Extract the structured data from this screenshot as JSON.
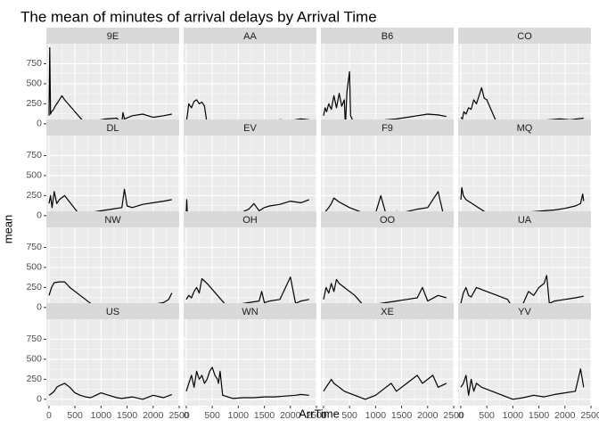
{
  "chart_data": {
    "type": "line",
    "layout": "facet_wrap",
    "ncol": 4,
    "title": "The mean of minutes of arrival delays by Arrival Time",
    "xlabel": "ArrTime",
    "ylabel": "mean",
    "xlim": [
      -50,
      2500
    ],
    "ylim": [
      -80,
      1000
    ],
    "x_ticks": [
      0,
      500,
      1000,
      1500,
      2000,
      2500
    ],
    "x_tick_labels": [
      "0",
      "500",
      "1000",
      "1500",
      "2000",
      "2500"
    ],
    "y_ticks": [
      0,
      250,
      500,
      750
    ],
    "y_tick_labels": [
      "0",
      "250",
      "500",
      "750"
    ],
    "grid": true,
    "background": "#ebebeb",
    "strip_color": "#d9d9d9",
    "line_color": "#000000",
    "facets": [
      {
        "name": "9E",
        "x": [
          1,
          15,
          30,
          50,
          80,
          120,
          160,
          200,
          250,
          300,
          700,
          900,
          1100,
          1300,
          1400,
          1420,
          1450,
          1600,
          1800,
          2000,
          2200,
          2359
        ],
        "y": [
          100,
          950,
          120,
          150,
          170,
          220,
          260,
          300,
          350,
          300,
          0,
          40,
          60,
          70,
          10,
          140,
          60,
          100,
          120,
          80,
          100,
          120
        ]
      },
      {
        "name": "AA",
        "x": [
          1,
          20,
          50,
          100,
          150,
          200,
          250,
          300,
          350,
          400,
          500,
          600,
          800,
          1000,
          1200,
          1400,
          1600,
          1800,
          2000,
          2200,
          2359
        ],
        "y": [
          20,
          100,
          250,
          200,
          280,
          300,
          250,
          270,
          220,
          0,
          -10,
          10,
          0,
          5,
          10,
          20,
          30,
          50,
          40,
          60,
          50
        ]
      },
      {
        "name": "B6",
        "x": [
          1,
          30,
          60,
          100,
          150,
          200,
          250,
          300,
          350,
          400,
          420,
          450,
          500,
          520,
          600,
          800,
          1000,
          1200,
          1400,
          1600,
          1800,
          2000,
          2200,
          2359
        ],
        "y": [
          100,
          200,
          150,
          250,
          180,
          350,
          200,
          380,
          220,
          300,
          -40,
          400,
          650,
          100,
          -10,
          0,
          30,
          50,
          60,
          80,
          100,
          120,
          110,
          90
        ]
      },
      {
        "name": "CO",
        "x": [
          1,
          30,
          60,
          100,
          150,
          200,
          250,
          300,
          350,
          400,
          450,
          500,
          700,
          900,
          1100,
          1300,
          1500,
          1700,
          1900,
          2100,
          2359
        ],
        "y": [
          80,
          60,
          150,
          120,
          200,
          180,
          300,
          250,
          350,
          450,
          320,
          300,
          0,
          10,
          20,
          30,
          40,
          50,
          60,
          50,
          70
        ]
      },
      {
        "name": "DL",
        "x": [
          1,
          30,
          60,
          100,
          150,
          200,
          300,
          600,
          800,
          1000,
          1200,
          1400,
          1450,
          1500,
          1600,
          1800,
          2000,
          2200,
          2359
        ],
        "y": [
          150,
          250,
          100,
          300,
          150,
          200,
          250,
          0,
          40,
          60,
          80,
          100,
          330,
          120,
          100,
          140,
          160,
          180,
          200
        ]
      },
      {
        "name": "EV",
        "x": [
          1,
          10,
          20,
          900,
          1000,
          1200,
          1300,
          1400,
          1500,
          1600,
          1800,
          2000,
          2200,
          2359
        ],
        "y": [
          50,
          200,
          40,
          -50,
          20,
          80,
          150,
          60,
          100,
          120,
          140,
          180,
          160,
          200
        ]
      },
      {
        "name": "F9",
        "x": [
          1,
          100,
          150,
          200,
          300,
          500,
          700,
          800,
          900,
          1000,
          1100,
          1200,
          1300,
          1400,
          1500,
          1600,
          1800,
          2000,
          2200,
          2300,
          2359
        ],
        "y": [
          20,
          100,
          150,
          220,
          170,
          100,
          50,
          0,
          30,
          30,
          250,
          20,
          30,
          50,
          40,
          50,
          80,
          100,
          300,
          20,
          40
        ]
      },
      {
        "name": "MQ",
        "x": [
          1,
          20,
          50,
          100,
          600,
          800,
          1000,
          1200,
          1400,
          1600,
          1800,
          2000,
          2200,
          2300,
          2340,
          2359
        ],
        "y": [
          200,
          350,
          250,
          200,
          -10,
          20,
          30,
          40,
          50,
          60,
          70,
          90,
          120,
          150,
          270,
          180
        ]
      },
      {
        "name": "NW",
        "x": [
          1,
          50,
          100,
          200,
          300,
          400,
          600,
          800,
          1000,
          1200,
          1400,
          1600,
          1800,
          1900,
          2000,
          2100,
          2200,
          2300,
          2359
        ],
        "y": [
          150,
          250,
          310,
          320,
          320,
          250,
          150,
          50,
          20,
          30,
          10,
          0,
          -10,
          10,
          30,
          50,
          60,
          100,
          180
        ]
      },
      {
        "name": "OH",
        "x": [
          1,
          50,
          100,
          150,
          200,
          250,
          300,
          400,
          600,
          800,
          1000,
          1200,
          1400,
          1450,
          1500,
          1600,
          1800,
          2000,
          2100,
          2200,
          2359
        ],
        "y": [
          100,
          150,
          120,
          200,
          250,
          180,
          360,
          300,
          150,
          0,
          40,
          60,
          80,
          200,
          60,
          80,
          100,
          380,
          50,
          80,
          100
        ]
      },
      {
        "name": "OO",
        "x": [
          1,
          50,
          100,
          150,
          200,
          250,
          300,
          400,
          600,
          800,
          1000,
          1200,
          1400,
          1600,
          1800,
          1900,
          2000,
          2200,
          2359
        ],
        "y": [
          100,
          250,
          180,
          300,
          200,
          350,
          300,
          250,
          150,
          0,
          40,
          60,
          80,
          100,
          120,
          250,
          80,
          150,
          120
        ]
      },
      {
        "name": "UA",
        "x": [
          1,
          50,
          100,
          150,
          200,
          300,
          500,
          700,
          900,
          1000,
          1100,
          1200,
          1300,
          1400,
          1500,
          1600,
          1650,
          1700,
          1800,
          2000,
          2200,
          2359
        ],
        "y": [
          50,
          180,
          250,
          150,
          130,
          250,
          200,
          150,
          100,
          -10,
          30,
          50,
          200,
          150,
          250,
          300,
          400,
          50,
          80,
          100,
          120,
          140
        ]
      },
      {
        "name": "US",
        "x": [
          1,
          50,
          100,
          150,
          200,
          300,
          400,
          500,
          600,
          700,
          800,
          900,
          1000,
          1100,
          1200,
          1300,
          1400,
          1600,
          1800,
          2000,
          2200,
          2359
        ],
        "y": [
          50,
          70,
          100,
          150,
          170,
          200,
          150,
          80,
          50,
          30,
          20,
          50,
          80,
          60,
          40,
          20,
          10,
          30,
          0,
          50,
          20,
          60
        ]
      },
      {
        "name": "WN",
        "x": [
          1,
          50,
          100,
          150,
          200,
          250,
          300,
          350,
          400,
          450,
          500,
          550,
          600,
          620,
          650,
          700,
          900,
          1100,
          1300,
          1500,
          1700,
          1900,
          2100,
          2200,
          2359
        ],
        "y": [
          100,
          200,
          300,
          150,
          350,
          250,
          300,
          200,
          250,
          350,
          400,
          300,
          250,
          200,
          350,
          50,
          10,
          20,
          20,
          30,
          30,
          40,
          50,
          60,
          50
        ]
      },
      {
        "name": "XE",
        "x": [
          1,
          50,
          100,
          150,
          200,
          300,
          400,
          600,
          800,
          1000,
          1100,
          1200,
          1300,
          1400,
          1500,
          1600,
          1700,
          1800,
          1900,
          2000,
          2100,
          2200,
          2359
        ],
        "y": [
          100,
          150,
          200,
          250,
          200,
          150,
          100,
          50,
          0,
          50,
          100,
          150,
          200,
          100,
          150,
          200,
          250,
          300,
          200,
          250,
          300,
          150,
          200
        ]
      },
      {
        "name": "YV",
        "x": [
          1,
          50,
          100,
          150,
          200,
          250,
          300,
          400,
          600,
          800,
          1000,
          1200,
          1400,
          1600,
          1800,
          2000,
          2200,
          2300,
          2359
        ],
        "y": [
          150,
          200,
          300,
          50,
          250,
          100,
          200,
          150,
          100,
          50,
          0,
          20,
          50,
          30,
          60,
          80,
          100,
          380,
          150
        ]
      }
    ]
  }
}
